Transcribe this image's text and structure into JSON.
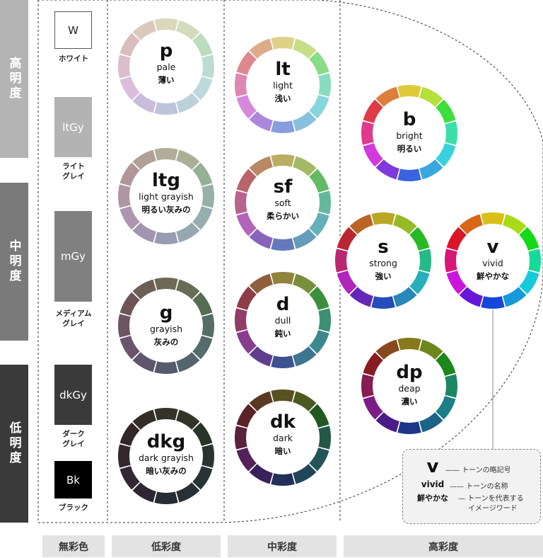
{
  "lightness_levels": [
    {
      "id": "high",
      "label": "高明度",
      "color": "#b4b4b4"
    },
    {
      "id": "mid",
      "label": "中明度",
      "color": "#7a7a7a"
    },
    {
      "id": "low",
      "label": "低明度",
      "color": "#3a3a3a"
    }
  ],
  "achromatic": [
    {
      "id": "w",
      "code": "W",
      "label": "ホワイト",
      "fill": "#ffffff",
      "text_color": "#222222"
    },
    {
      "id": "ltgy",
      "code": "ltGy",
      "label": "ライト\nグレイ",
      "fill": "#b3b3b3",
      "text_color": "#ffffff"
    },
    {
      "id": "mgy",
      "code": "mGy",
      "label": "メディアム\nグレイ",
      "fill": "#808080",
      "text_color": "#ffffff"
    },
    {
      "id": "dkgy",
      "code": "dkGy",
      "label": "ダーク\nグレイ",
      "fill": "#3a3a3a",
      "text_color": "#ffffff"
    },
    {
      "id": "bk",
      "code": "Bk",
      "label": "ブラック",
      "fill": "#000000",
      "text_color": "#ffffff"
    }
  ],
  "tones": [
    {
      "id": "p",
      "code": "p",
      "en": "pale",
      "jp": "薄い",
      "s": 0.3,
      "l": 0.8
    },
    {
      "id": "ltg",
      "code": "ltg",
      "en": "light grayish",
      "jp": "明るい灰みの",
      "s": 0.14,
      "l": 0.64
    },
    {
      "id": "g",
      "code": "g",
      "en": "grayish",
      "jp": "灰みの",
      "s": 0.12,
      "l": 0.38
    },
    {
      "id": "dkg",
      "code": "dkg",
      "en": "dark grayish",
      "jp": "暗い灰みの",
      "s": 0.14,
      "l": 0.18
    },
    {
      "id": "lt",
      "code": "lt",
      "en": "light",
      "jp": "浅い",
      "s": 0.55,
      "l": 0.7
    },
    {
      "id": "sf",
      "code": "sf",
      "en": "soft",
      "jp": "柔らかい",
      "s": 0.38,
      "l": 0.56
    },
    {
      "id": "d",
      "code": "d",
      "en": "dull",
      "jp": "鈍い",
      "s": 0.4,
      "l": 0.4
    },
    {
      "id": "dk",
      "code": "dk",
      "en": "dark",
      "jp": "暗い",
      "s": 0.45,
      "l": 0.24
    },
    {
      "id": "b",
      "code": "b",
      "en": "bright",
      "jp": "明るい",
      "s": 0.72,
      "l": 0.55
    },
    {
      "id": "s",
      "code": "s",
      "en": "strong",
      "jp": "強い",
      "s": 0.66,
      "l": 0.44
    },
    {
      "id": "v",
      "code": "v",
      "en": "vivid",
      "jp": "鮮やかな",
      "s": 0.82,
      "l": 0.47
    },
    {
      "id": "dp",
      "code": "dp",
      "en": "deap",
      "jp": "濃い",
      "s": 0.66,
      "l": 0.32
    }
  ],
  "saturation_groups": [
    {
      "id": "achromatic",
      "label": "無彩色"
    },
    {
      "id": "low",
      "label": "低彩度"
    },
    {
      "id": "mid",
      "label": "中彩度"
    },
    {
      "id": "high",
      "label": "高彩度"
    }
  ],
  "legend": {
    "code": "v",
    "code_note": "トーンの略記号",
    "en": "vivid",
    "en_note": "トーンの名称",
    "jp": "鮮やかな",
    "jp_note_1": "トーンを代表する",
    "jp_note_2": "イメージワード"
  },
  "colors": {
    "outline": "#333333",
    "bottom_bg": "#e3e3e3",
    "legend_bg": "#f2f2f2"
  }
}
